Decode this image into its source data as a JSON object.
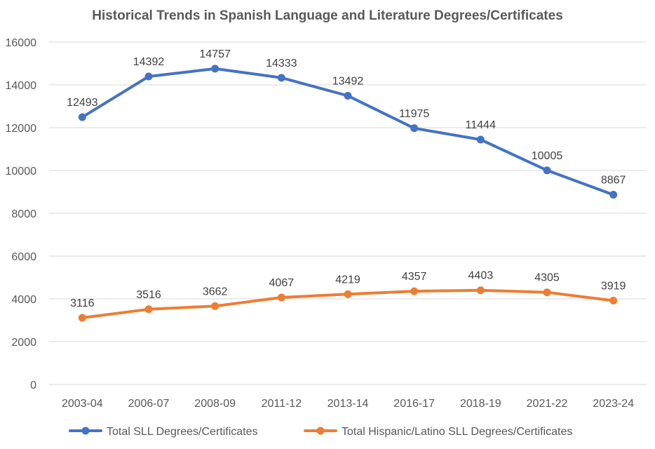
{
  "chart_data": {
    "type": "line",
    "title": "Historical Trends in Spanish Language and Literature Degrees/Certificates",
    "categories": [
      "2003-04",
      "2006-07",
      "2008-09",
      "2011-12",
      "2013-14",
      "2016-17",
      "2018-19",
      "2021-22",
      "2023-24"
    ],
    "ylim": [
      0,
      16000
    ],
    "yticks": [
      0,
      2000,
      4000,
      6000,
      8000,
      10000,
      12000,
      14000,
      16000
    ],
    "grid": true,
    "legend": "bottom",
    "data_labels": true,
    "series": [
      {
        "name": "Total SLL Degrees/Certificates",
        "color": "#4472C4",
        "values": [
          12493,
          14392,
          14757,
          14333,
          13492,
          11975,
          11444,
          10005,
          8867
        ]
      },
      {
        "name": "Total Hispanic/Latino SLL Degrees/Certificates",
        "color": "#ED7D31",
        "values": [
          3116,
          3516,
          3662,
          4067,
          4219,
          4357,
          4403,
          4305,
          3919
        ]
      }
    ]
  }
}
